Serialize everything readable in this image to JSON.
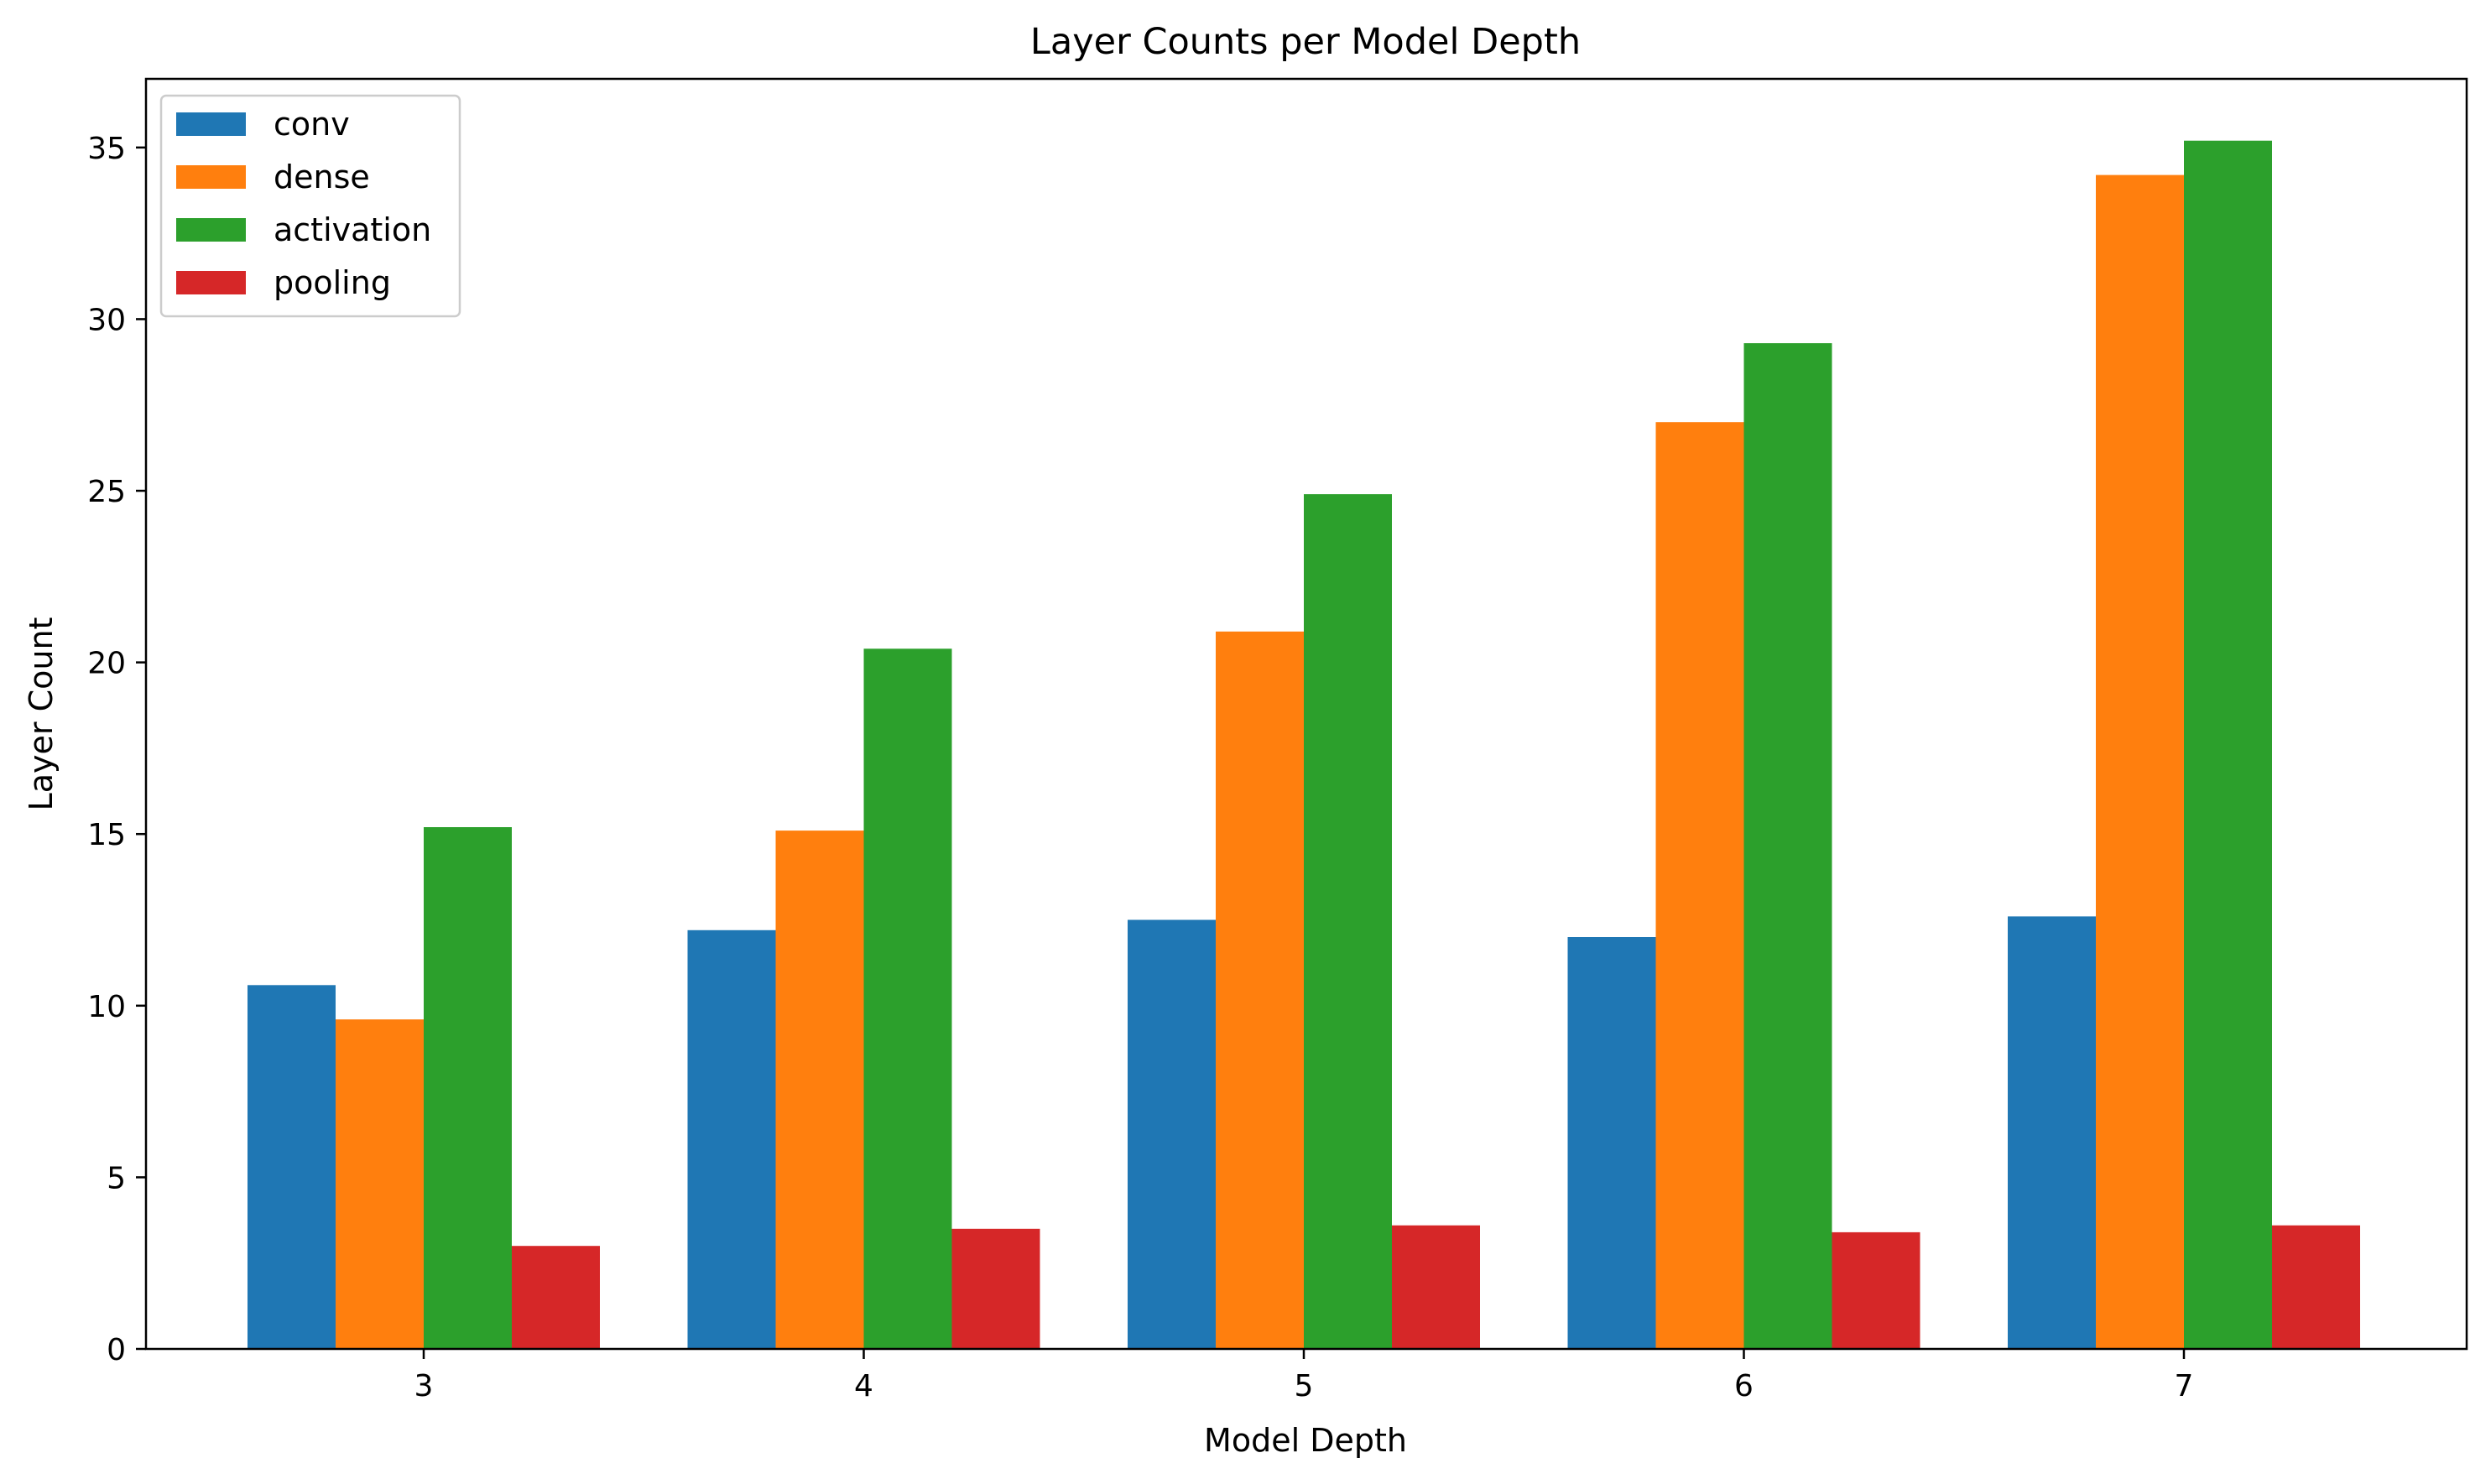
{
  "chart_data": {
    "type": "bar",
    "title": "Layer Counts per Model Depth",
    "xlabel": "Model Depth",
    "ylabel": "Layer Count",
    "categories": [
      "3",
      "4",
      "5",
      "6",
      "7"
    ],
    "ylim": [
      0,
      37
    ],
    "yticks": [
      0,
      5,
      10,
      15,
      20,
      25,
      30,
      35
    ],
    "grid": false,
    "legend_position": "top-left",
    "series": [
      {
        "name": "conv",
        "color": "#1f77b4",
        "values": [
          10.6,
          12.2,
          12.5,
          12.0,
          12.6
        ]
      },
      {
        "name": "dense",
        "color": "#ff7f0e",
        "values": [
          9.6,
          15.1,
          20.9,
          27.0,
          34.2
        ]
      },
      {
        "name": "activation",
        "color": "#2ca02c",
        "values": [
          15.2,
          20.4,
          24.9,
          29.3,
          35.2
        ]
      },
      {
        "name": "pooling",
        "color": "#d62728",
        "values": [
          3.0,
          3.5,
          3.6,
          3.4,
          3.6
        ]
      }
    ]
  }
}
